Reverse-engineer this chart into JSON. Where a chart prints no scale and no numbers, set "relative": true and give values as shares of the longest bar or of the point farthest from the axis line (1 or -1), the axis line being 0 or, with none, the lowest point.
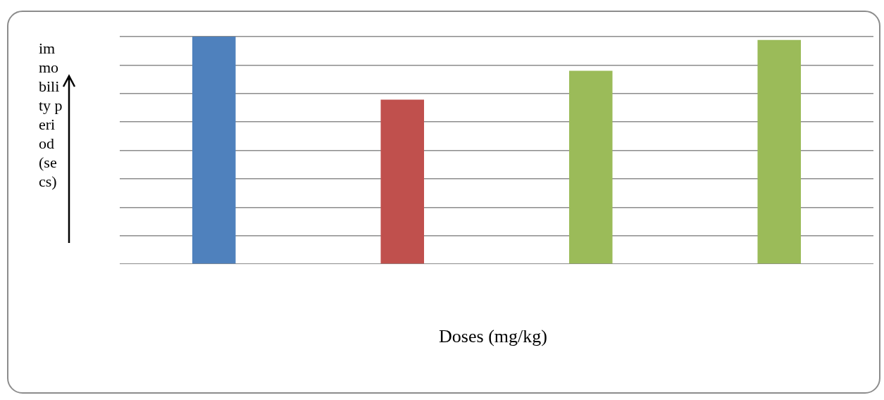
{
  "chart_data": {
    "type": "bar",
    "xlabel": "Doses (mg/kg)",
    "ylabel": "immobility period (secs)",
    "categories": [
      null,
      null,
      null,
      null
    ],
    "values": [
      1,
      0.723,
      0.85,
      0.985
    ],
    "colors": [
      "#4f81bd",
      "#c0504d",
      "#9bbb59",
      "#9bbb59"
    ],
    "relative": true,
    "grid": "y"
  }
}
